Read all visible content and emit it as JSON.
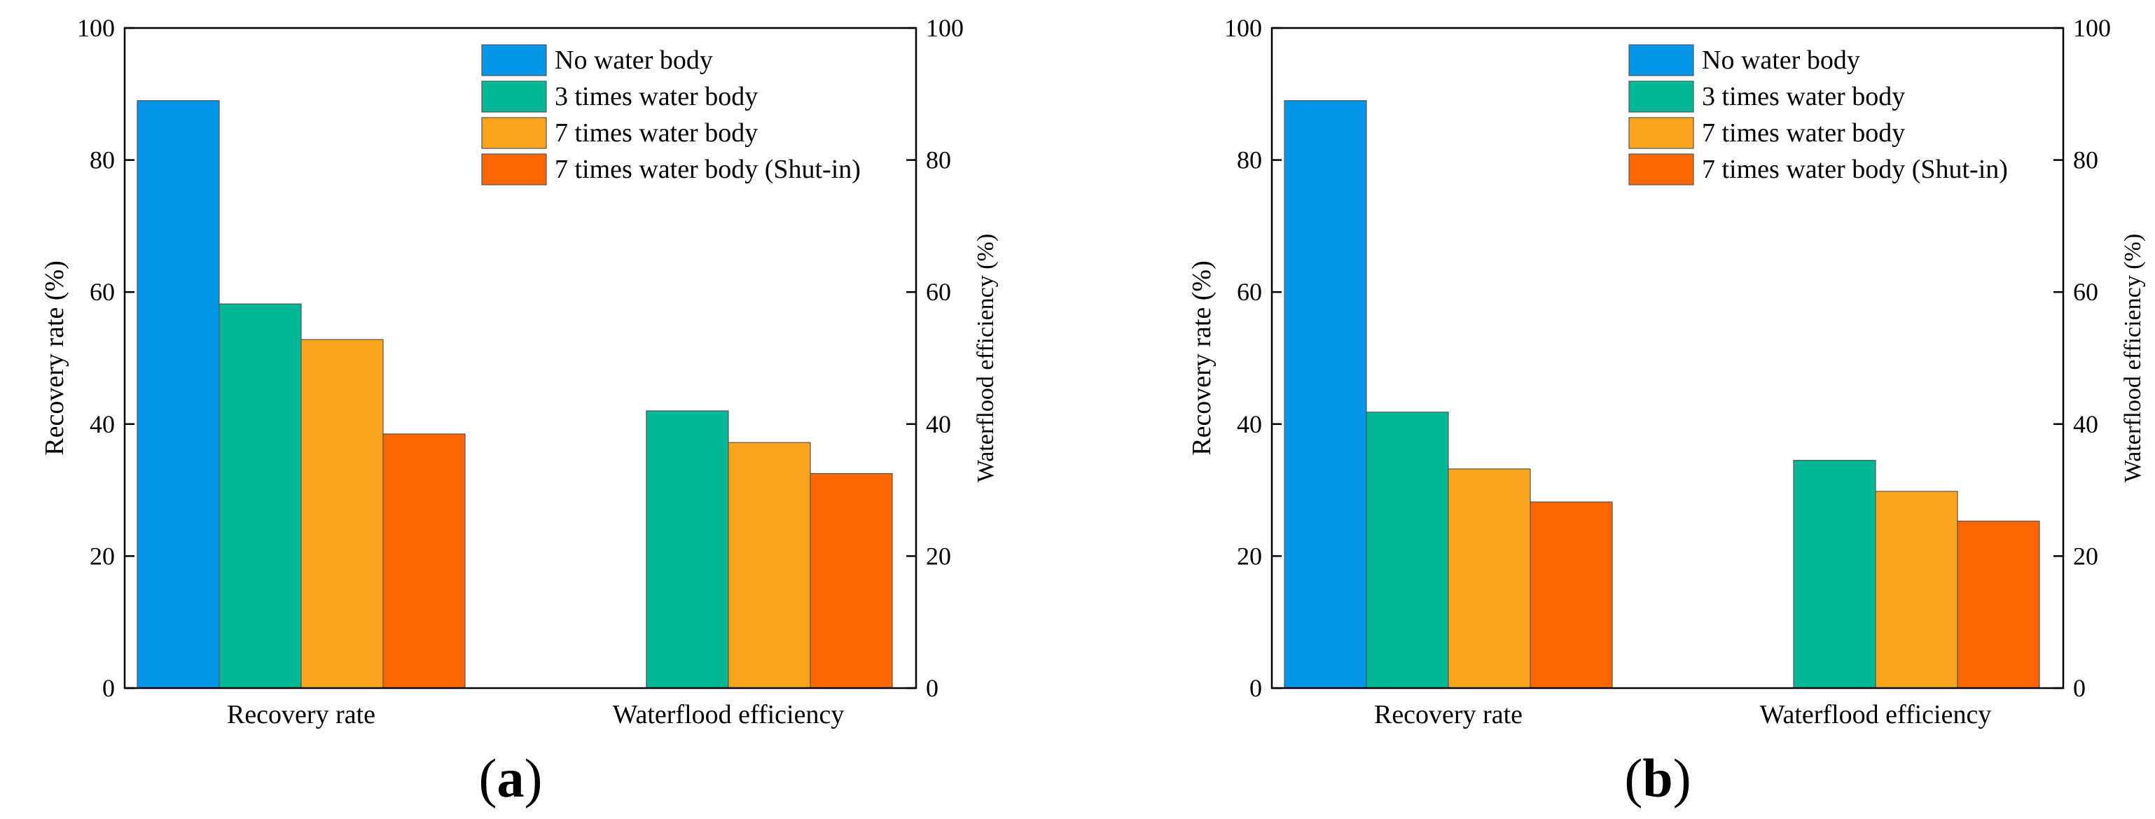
{
  "chart_data": [
    {
      "type": "bar",
      "panel_label": "(a)",
      "categories": [
        "Recovery rate",
        "Waterflood efficiency"
      ],
      "series": [
        {
          "name": "No water body",
          "color": "#0295E8",
          "values": [
            89,
            null
          ]
        },
        {
          "name": "3 times water body",
          "color": "#00B896",
          "values": [
            58.2,
            42
          ]
        },
        {
          "name": "7 times water body",
          "color": "#FBA51E",
          "values": [
            52.8,
            37.2
          ]
        },
        {
          "name": "7 times water body (Shut-in)",
          "color": "#FE6600",
          "values": [
            38.5,
            32.5
          ]
        }
      ],
      "ylabel": "Recovery rate (%)",
      "y2label": "Waterflood efficiency (%)",
      "ylim": [
        0,
        100
      ],
      "y2lim": [
        0,
        100
      ],
      "yticks": [
        "0",
        "20",
        "40",
        "60",
        "80",
        "100"
      ],
      "y2ticks": [
        "0",
        "20",
        "40",
        "60",
        "80",
        "100"
      ],
      "legend_position": "top-right",
      "grid": false
    },
    {
      "type": "bar",
      "panel_label": "(b)",
      "categories": [
        "Recovery rate",
        "Waterflood efficiency"
      ],
      "series": [
        {
          "name": "No water body",
          "color": "#0295E8",
          "values": [
            89,
            null
          ]
        },
        {
          "name": "3 times water body",
          "color": "#00B896",
          "values": [
            41.8,
            34.5
          ]
        },
        {
          "name": "7 times water body",
          "color": "#FBA51E",
          "values": [
            33.2,
            29.8
          ]
        },
        {
          "name": "7 times water body (Shut-in)",
          "color": "#FE6600",
          "values": [
            28.2,
            25.3
          ]
        }
      ],
      "ylabel": "Recovery rate (%)",
      "y2label": "Waterflood efficiency (%)",
      "ylim": [
        0,
        100
      ],
      "y2lim": [
        0,
        100
      ],
      "yticks": [
        "0",
        "20",
        "40",
        "60",
        "80",
        "100"
      ],
      "y2ticks": [
        "0",
        "20",
        "40",
        "60",
        "80",
        "100"
      ],
      "legend_position": "top-right",
      "grid": false
    }
  ]
}
